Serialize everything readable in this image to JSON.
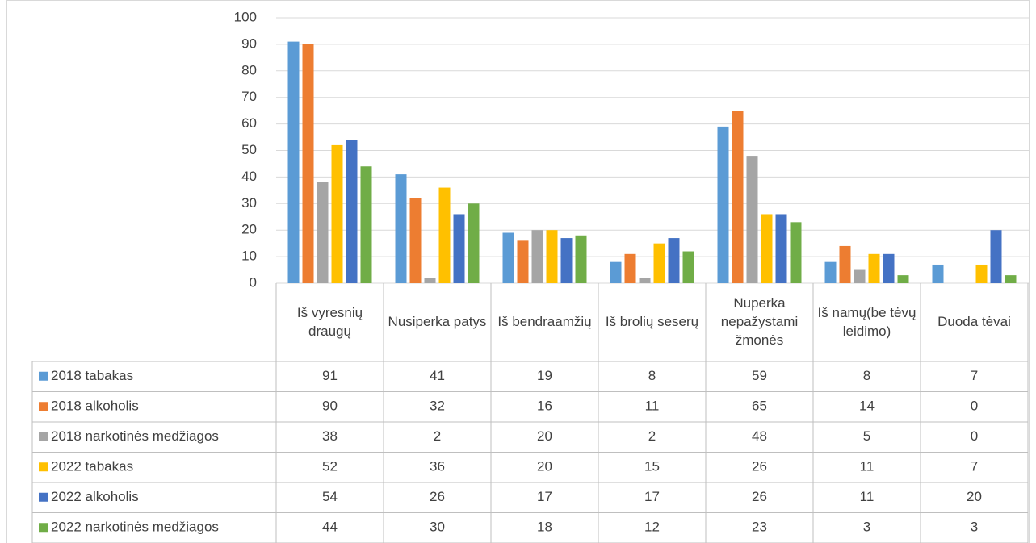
{
  "chart_data": {
    "type": "bar",
    "categories": [
      "Iš vyresnių draugų",
      "Nusiperka patys",
      "Iš bendraamžių",
      "Iš brolių seserų",
      "Nuperka nepažystami žmonės",
      "Iš namų(be tėvų leidimo)",
      "Duoda tėvai"
    ],
    "series": [
      {
        "name": "2018 tabakas",
        "color": "#5b9bd5",
        "values": [
          91,
          41,
          19,
          8,
          59,
          8,
          7
        ]
      },
      {
        "name": "2018 alkoholis",
        "color": "#ed7d31",
        "values": [
          90,
          32,
          16,
          11,
          65,
          14,
          0
        ]
      },
      {
        "name": "2018 narkotinės medžiagos",
        "color": "#a5a5a5",
        "values": [
          38,
          2,
          20,
          2,
          48,
          5,
          0
        ]
      },
      {
        "name": "2022 tabakas",
        "color": "#ffc000",
        "values": [
          52,
          36,
          20,
          15,
          26,
          11,
          7
        ]
      },
      {
        "name": "2022 alkoholis",
        "color": "#4472c4",
        "values": [
          54,
          26,
          17,
          17,
          26,
          11,
          20
        ]
      },
      {
        "name": "2022 narkotinės medžiagos",
        "color": "#70ad47",
        "values": [
          44,
          30,
          18,
          12,
          23,
          3,
          3
        ]
      }
    ],
    "ylim": [
      0,
      100
    ],
    "yticks": [
      0,
      10,
      20,
      30,
      40,
      50,
      60,
      70,
      80,
      90,
      100
    ],
    "grid": true
  }
}
